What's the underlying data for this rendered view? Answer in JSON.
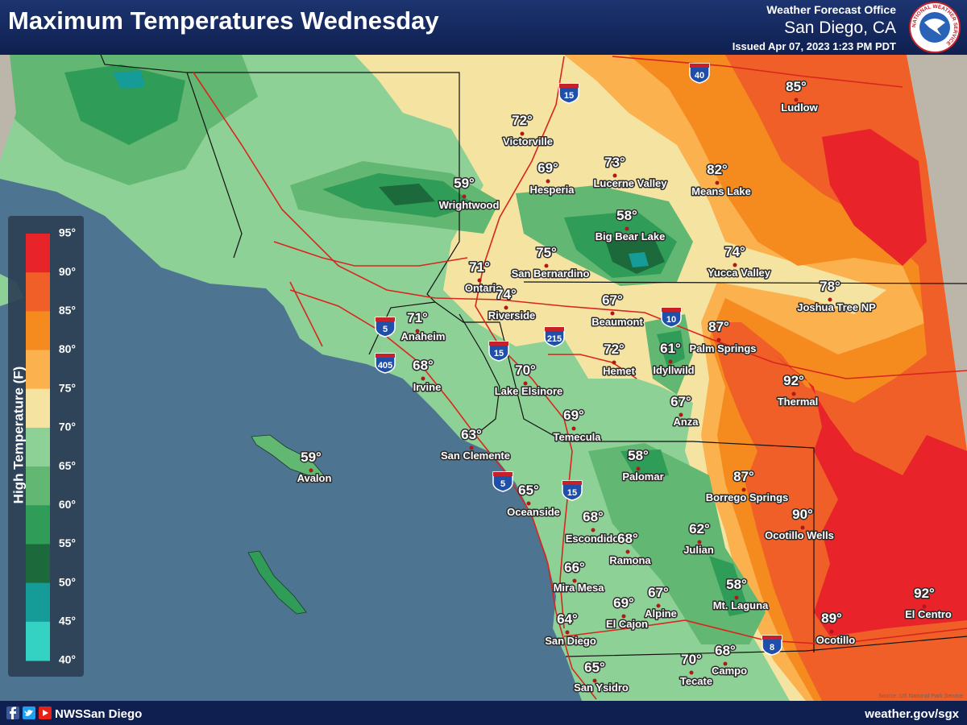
{
  "header": {
    "title": "Maximum Temperatures Wednesday",
    "office": "Weather Forecast Office",
    "location": "San Diego, CA",
    "issued": "Issued Apr 07, 2023 1:23 PM PDT",
    "logo_text": "NATIONAL WEATHER SERVICE"
  },
  "legend": {
    "title": "High Temperature (F)",
    "labels": [
      "95°",
      "90°",
      "85°",
      "80°",
      "75°",
      "70°",
      "65°",
      "60°",
      "55°",
      "50°",
      "45°",
      "40°"
    ],
    "colors": [
      "#e8232a",
      "#ef5f27",
      "#f58a1f",
      "#fbb24e",
      "#f5e3a2",
      "#8ed196",
      "#62b872",
      "#2f9c57",
      "#1c6a3c",
      "#159b98",
      "#33d2c3"
    ]
  },
  "cities": [
    {
      "name": "Victorville",
      "temp": "72°"
    },
    {
      "name": "Hesperia",
      "temp": "69°"
    },
    {
      "name": "Lucerne Valley",
      "temp": "73°"
    },
    {
      "name": "Means Lake",
      "temp": "82°"
    },
    {
      "name": "Ludlow",
      "temp": "85°"
    },
    {
      "name": "Wrightwood",
      "temp": "59°"
    },
    {
      "name": "Big Bear Lake",
      "temp": "58°"
    },
    {
      "name": "Yucca Valley",
      "temp": "74°"
    },
    {
      "name": "Joshua Tree NP",
      "temp": "78°"
    },
    {
      "name": "Ontario",
      "temp": "71°"
    },
    {
      "name": "San Bernardino",
      "temp": "75°"
    },
    {
      "name": "Riverside",
      "temp": "74°"
    },
    {
      "name": "Beaumont",
      "temp": "67°"
    },
    {
      "name": "Palm Springs",
      "temp": "87°"
    },
    {
      "name": "Anaheim",
      "temp": "71°"
    },
    {
      "name": "Irvine",
      "temp": "68°"
    },
    {
      "name": "Lake Elsinore",
      "temp": "70°"
    },
    {
      "name": "Hemet",
      "temp": "72°"
    },
    {
      "name": "Idyllwild",
      "temp": "61°"
    },
    {
      "name": "Thermal",
      "temp": "92°"
    },
    {
      "name": "Anza",
      "temp": "67°"
    },
    {
      "name": "Temecula",
      "temp": "69°"
    },
    {
      "name": "San Clemente",
      "temp": "63°"
    },
    {
      "name": "Avalon",
      "temp": "59°"
    },
    {
      "name": "Palomar",
      "temp": "58°"
    },
    {
      "name": "Borrego Springs",
      "temp": "87°"
    },
    {
      "name": "Oceanside",
      "temp": "65°"
    },
    {
      "name": "Ocotillo Wells",
      "temp": "90°"
    },
    {
      "name": "Escondido",
      "temp": "68°"
    },
    {
      "name": "Ramona",
      "temp": "68°"
    },
    {
      "name": "Julian",
      "temp": "62°"
    },
    {
      "name": "Mira Mesa",
      "temp": "66°"
    },
    {
      "name": "Mt. Laguna",
      "temp": "58°"
    },
    {
      "name": "El Cajon",
      "temp": "69°"
    },
    {
      "name": "Alpine",
      "temp": "67°"
    },
    {
      "name": "El Centro",
      "temp": "92°"
    },
    {
      "name": "Ocotillo",
      "temp": "89°"
    },
    {
      "name": "San Diego",
      "temp": "64°"
    },
    {
      "name": "Tecate",
      "temp": "70°"
    },
    {
      "name": "Campo",
      "temp": "68°"
    },
    {
      "name": "San Ysidro",
      "temp": "65°"
    }
  ],
  "highways": [
    "40",
    "15",
    "5",
    "405",
    "15",
    "215",
    "10",
    "5",
    "15",
    "8"
  ],
  "footer": {
    "handle": "NWSSan Diego",
    "url": "weather.gov/sgx"
  },
  "source": "Source: US National Park Service"
}
